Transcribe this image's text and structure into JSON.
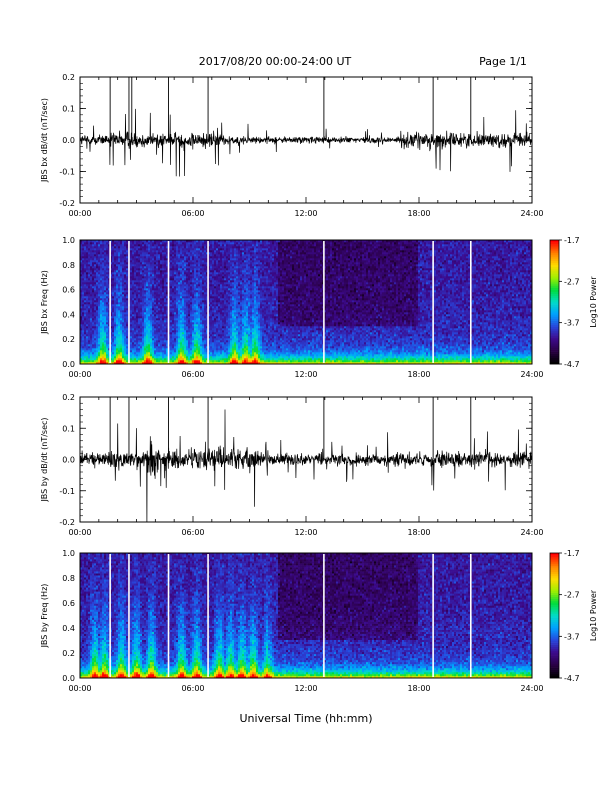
{
  "header": {
    "date_range": "2017/08/20  00:00-24:00 UT",
    "page": "Page 1/1"
  },
  "colors": {
    "trace": "#000000",
    "gap_lines": "#ffffff",
    "colormap": [
      "#000000",
      "#2a0046",
      "#3c0a8c",
      "#2846dc",
      "#00a0ff",
      "#00dcc8",
      "#00dc3c",
      "#a0f000",
      "#ffdc00",
      "#ff8200",
      "#ff0000"
    ]
  },
  "chart_data": [
    {
      "type": "line",
      "ylabel": "JBS bx dB/dt (nT/sec)",
      "xlabel": "",
      "xlim": [
        0,
        24
      ],
      "ylim": [
        -0.2,
        0.2
      ],
      "xticks": [
        "00:00",
        "06:00",
        "12:00",
        "18:00",
        "24:00"
      ],
      "yticks": [
        "-0.2",
        "-0.1",
        "0.0",
        "0.1",
        "0.2"
      ],
      "baseline": 0.0,
      "activity": [
        {
          "t": [
            0,
            1.5
          ],
          "amp": 0.03
        },
        {
          "t": [
            1.5,
            3
          ],
          "amp": 0.045
        },
        {
          "t": [
            3,
            5
          ],
          "amp": 0.04
        },
        {
          "t": [
            5,
            7.5
          ],
          "amp": 0.045
        },
        {
          "t": [
            7.5,
            9
          ],
          "amp": 0.03
        },
        {
          "t": [
            9,
            12
          ],
          "amp": 0.02
        },
        {
          "t": [
            12,
            14
          ],
          "amp": 0.02
        },
        {
          "t": [
            14,
            17
          ],
          "amp": 0.018
        },
        {
          "t": [
            17,
            19.5
          ],
          "amp": 0.045
        },
        {
          "t": [
            19.5,
            24
          ],
          "amp": 0.04
        }
      ],
      "spikes": [
        1.6,
        2.6,
        2.75,
        4.7,
        6.8,
        12.95,
        18.75,
        20.75
      ],
      "spike_top": 0.22
    },
    {
      "type": "heatmap",
      "ylabel": "JBS bx Freq (Hz)",
      "xlabel": "",
      "xlim": [
        0,
        24
      ],
      "ylim": [
        0.0,
        1.0
      ],
      "xticks": [
        "00:00",
        "06:00",
        "12:00",
        "18:00",
        "24:00"
      ],
      "yticks": [
        "0.0",
        "0.2",
        "0.4",
        "0.6",
        "0.8",
        "1.0"
      ],
      "colorbar": {
        "label": "Log10 Power",
        "ticks": [
          "-1.7",
          "-2.7",
          "-3.7",
          "-4.7"
        ],
        "range": [
          -4.7,
          -1.7
        ]
      },
      "gaps": [
        1.6,
        2.6,
        4.7,
        6.8,
        12.95,
        18.75,
        20.75
      ],
      "bright_bands": [
        1.2,
        2.1,
        3.6,
        5.4,
        6.2,
        8.2,
        8.8,
        9.3
      ]
    },
    {
      "type": "line",
      "ylabel": "JBS by dB/dt (nT/sec)",
      "xlabel": "",
      "xlim": [
        0,
        24
      ],
      "ylim": [
        -0.2,
        0.2
      ],
      "xticks": [
        "00:00",
        "06:00",
        "12:00",
        "18:00",
        "24:00"
      ],
      "yticks": [
        "-0.2",
        "-0.1",
        "0.0",
        "0.1",
        "0.2"
      ],
      "baseline": 0.0,
      "activity": [
        {
          "t": [
            0,
            1.5
          ],
          "amp": 0.035
        },
        {
          "t": [
            1.5,
            3.5
          ],
          "amp": 0.055
        },
        {
          "t": [
            3.5,
            4.2
          ],
          "amp": 0.11
        },
        {
          "t": [
            4.2,
            7
          ],
          "amp": 0.055
        },
        {
          "t": [
            7,
            9.5
          ],
          "amp": 0.065
        },
        {
          "t": [
            9.5,
            12
          ],
          "amp": 0.035
        },
        {
          "t": [
            12,
            16
          ],
          "amp": 0.03
        },
        {
          "t": [
            16,
            18
          ],
          "amp": 0.035
        },
        {
          "t": [
            18,
            24
          ],
          "amp": 0.045
        }
      ],
      "spikes": [
        1.6,
        2.6,
        4.7,
        6.8,
        12.95,
        18.75,
        20.75
      ],
      "spike_top": 0.22
    },
    {
      "type": "heatmap",
      "ylabel": "JBS by Freq (Hz)",
      "xlabel": "Universal Time (hh:mm)",
      "xlim": [
        0,
        24
      ],
      "ylim": [
        0.0,
        1.0
      ],
      "xticks": [
        "00:00",
        "06:00",
        "12:00",
        "18:00",
        "24:00"
      ],
      "yticks": [
        "0.0",
        "0.2",
        "0.4",
        "0.6",
        "0.8",
        "1.0"
      ],
      "colorbar": {
        "label": "Log10 Power",
        "ticks": [
          "-1.7",
          "-2.7",
          "-3.7",
          "-4.7"
        ],
        "range": [
          -4.7,
          -1.7
        ]
      },
      "gaps": [
        1.6,
        2.6,
        4.7,
        6.8,
        12.95,
        18.75,
        20.75
      ],
      "bright_bands": [
        0.8,
        1.3,
        2.2,
        3.0,
        3.8,
        5.4,
        6.2,
        7.4,
        8.0,
        8.6,
        9.2,
        10.0
      ]
    }
  ]
}
